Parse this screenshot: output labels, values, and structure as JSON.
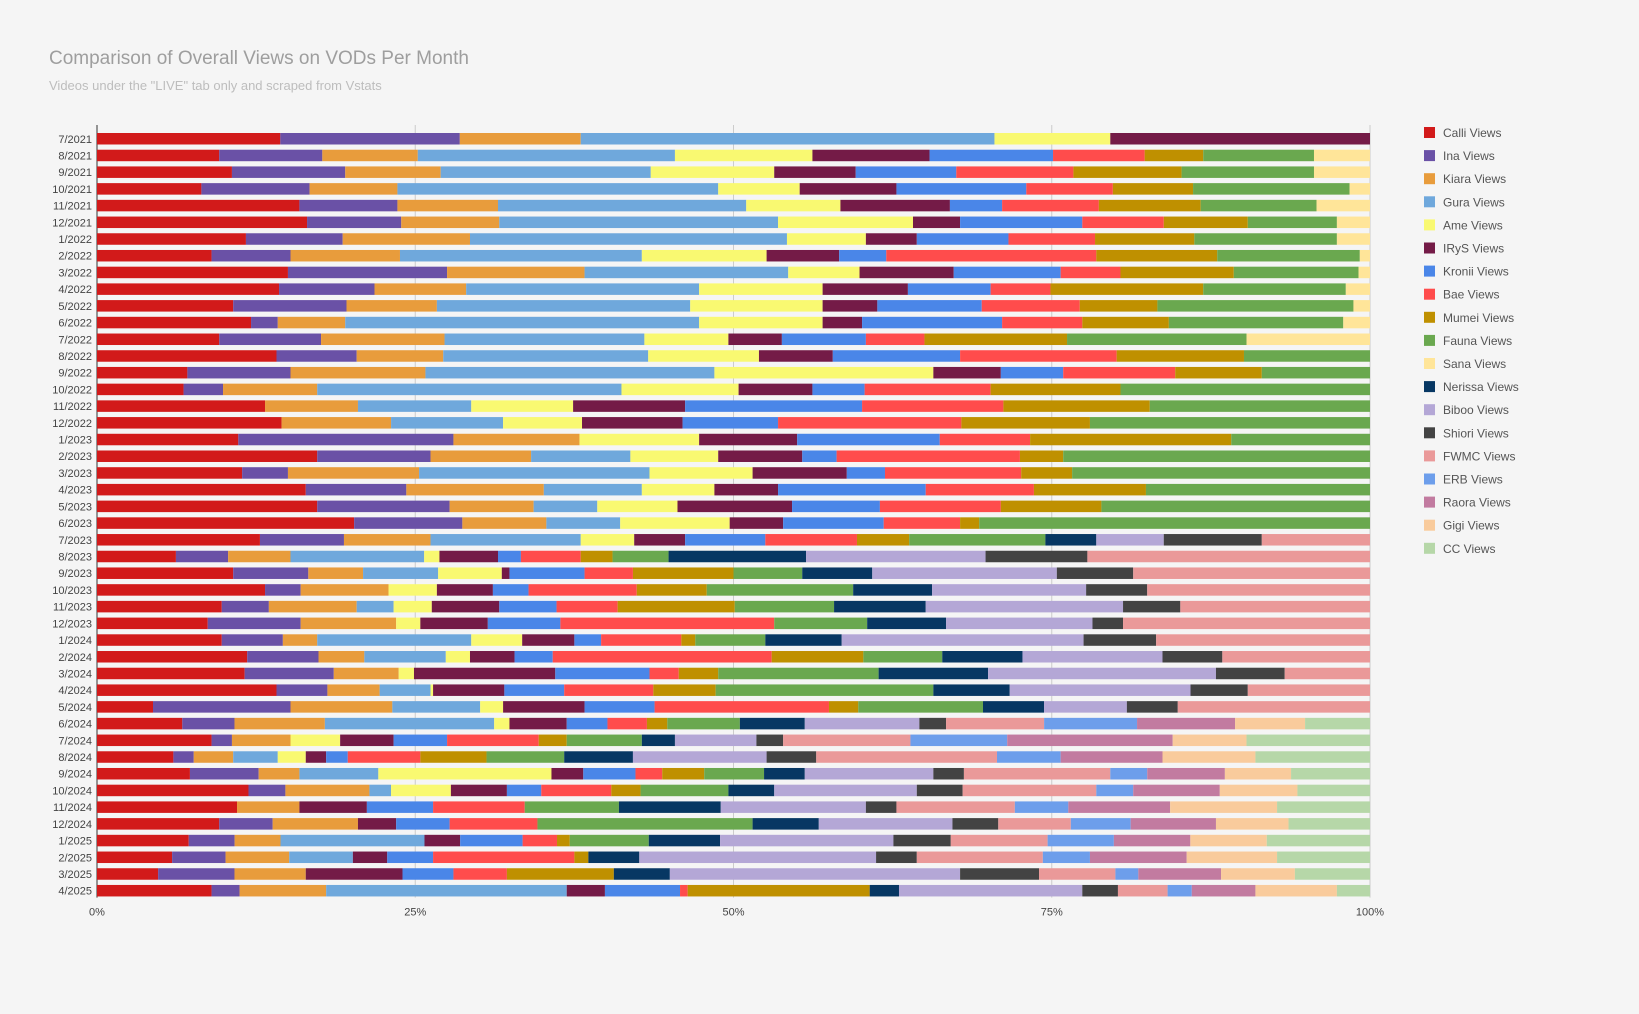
{
  "chart_data": {
    "type": "bar",
    "orientation": "horizontal",
    "stacking": "percent",
    "title": "Comparison of Overall Views on VODs Per Month",
    "subtitle": "Videos under the \"LIVE\" tab only and scraped from Vstats",
    "xlim": [
      0,
      100
    ],
    "x_ticks": [
      "0%",
      "25%",
      "50%",
      "75%",
      "100%"
    ],
    "grid": true,
    "legend_position": "right",
    "categories": [
      "7/2021",
      "8/2021",
      "9/2021",
      "10/2021",
      "11/2021",
      "12/2021",
      "1/2022",
      "2/2022",
      "3/2022",
      "4/2022",
      "5/2022",
      "6/2022",
      "7/2022",
      "8/2022",
      "9/2022",
      "10/2022",
      "11/2022",
      "12/2022",
      "1/2023",
      "2/2023",
      "3/2023",
      "4/2023",
      "5/2023",
      "6/2023",
      "7/2023",
      "8/2023",
      "9/2023",
      "10/2023",
      "11/2023",
      "12/2023",
      "1/2024",
      "2/2024",
      "3/2024",
      "4/2024",
      "5/2024",
      "6/2024",
      "7/2024",
      "8/2024",
      "9/2024",
      "10/2024",
      "11/2024",
      "12/2024",
      "1/2025",
      "2/2025",
      "3/2025",
      "4/2025"
    ],
    "series": [
      {
        "name": "Calli Views",
        "color": "#d21a1a",
        "values": [
          14.4,
          9.6,
          10.6,
          8.2,
          15.9,
          16.5,
          11.7,
          9.0,
          15.0,
          14.3,
          10.7,
          12.1,
          9.6,
          14.1,
          7.1,
          6.8,
          13.2,
          14.5,
          11.1,
          17.3,
          11.4,
          16.4,
          17.3,
          20.2,
          12.8,
          6.2,
          10.7,
          13.2,
          9.8,
          8.7,
          9.8,
          11.8,
          11.6,
          14.1,
          4.4,
          6.7,
          9.0,
          6.0,
          7.3,
          11.9,
          11.0,
          9.6,
          7.2,
          5.9,
          4.8,
          9.0
        ]
      },
      {
        "name": "Ina Views",
        "color": "#6a51a6",
        "values": [
          14.1,
          8.1,
          8.9,
          8.5,
          7.7,
          7.4,
          7.6,
          6.2,
          12.5,
          7.5,
          8.9,
          2.1,
          8.0,
          6.3,
          8.1,
          3.1,
          0,
          0,
          16.9,
          8.9,
          3.6,
          7.9,
          10.4,
          8.5,
          6.6,
          4.1,
          5.9,
          2.8,
          3.7,
          7.3,
          4.8,
          5.6,
          7.0,
          4.0,
          10.8,
          4.1,
          1.6,
          1.6,
          5.4,
          2.9,
          0,
          4.2,
          3.6,
          4.2,
          6.0,
          2.2
        ]
      },
      {
        "name": "Kiara Views",
        "color": "#e89c3c",
        "values": [
          9.5,
          7.5,
          7.5,
          6.9,
          7.9,
          7.7,
          10.0,
          8.6,
          10.8,
          7.2,
          7.1,
          5.3,
          9.7,
          6.8,
          10.6,
          7.4,
          7.3,
          8.6,
          9.9,
          7.9,
          10.3,
          10.8,
          6.6,
          6.6,
          6.8,
          4.9,
          4.3,
          6.9,
          6.9,
          7.5,
          2.7,
          3.6,
          5.1,
          4.1,
          8.0,
          7.1,
          4.6,
          3.1,
          3.2,
          6.6,
          4.9,
          6.7,
          3.6,
          5.0,
          5.6,
          6.8
        ]
      },
      {
        "name": "Gura Views",
        "color": "#6fa8dc",
        "values": [
          32.5,
          20.2,
          16.5,
          25.2,
          19.5,
          21.9,
          24.9,
          19.0,
          16.0,
          18.3,
          19.9,
          27.8,
          15.7,
          16.1,
          22.7,
          23.9,
          8.9,
          8.8,
          0,
          7.8,
          18.1,
          7.7,
          5.0,
          5.8,
          11.8,
          10.5,
          5.9,
          0,
          2.9,
          0,
          12.1,
          6.4,
          0,
          4.0,
          6.9,
          13.3,
          0,
          3.5,
          6.2,
          1.7,
          0,
          0,
          11.3,
          5.0,
          0,
          18.9
        ]
      },
      {
        "name": "Ame Views",
        "color": "#f9f971",
        "values": [
          9.1,
          10.8,
          9.7,
          6.4,
          7.4,
          10.6,
          6.2,
          9.8,
          5.6,
          9.7,
          10.4,
          9.7,
          6.6,
          8.7,
          17.2,
          9.2,
          8.0,
          6.2,
          9.4,
          6.9,
          8.1,
          5.7,
          6.3,
          8.6,
          4.2,
          1.2,
          5.0,
          3.8,
          3.0,
          1.9,
          4.0,
          1.9,
          1.2,
          0.2,
          1.8,
          1.2,
          3.9,
          2.2,
          13.6,
          4.7,
          0,
          0,
          0,
          0,
          0,
          0
        ]
      },
      {
        "name": "IRyS Views",
        "color": "#741b47",
        "values": [
          20.4,
          9.2,
          6.4,
          7.6,
          8.6,
          3.7,
          4.0,
          5.7,
          7.4,
          6.7,
          4.3,
          3.1,
          4.2,
          5.8,
          5.3,
          5.8,
          8.8,
          7.9,
          7.7,
          6.6,
          7.4,
          5.0,
          9.0,
          4.2,
          4.0,
          4.6,
          0.6,
          4.4,
          5.3,
          5.3,
          4.1,
          3.5,
          11.1,
          5.6,
          6.4,
          4.5,
          4.2,
          1.6,
          2.5,
          4.4,
          5.3,
          3.0,
          2.8,
          2.7,
          7.6,
          3.0
        ]
      },
      {
        "name": "Kronii Views",
        "color": "#4a86e8",
        "values": [
          0,
          9.7,
          7.9,
          10.2,
          4.1,
          9.6,
          7.2,
          3.7,
          8.4,
          6.5,
          8.2,
          11.0,
          6.6,
          10.0,
          4.9,
          4.1,
          13.9,
          7.5,
          11.2,
          2.7,
          3.0,
          11.6,
          6.9,
          7.9,
          6.3,
          1.8,
          5.9,
          2.8,
          4.5,
          5.7,
          2.1,
          3.0,
          7.4,
          4.7,
          5.5,
          3.2,
          4.2,
          1.7,
          4.1,
          2.7,
          5.2,
          4.2,
          4.9,
          3.6,
          4.0,
          5.9
        ]
      },
      {
        "name": "Bae Views",
        "color": "#ff4c4c",
        "values": [
          0,
          7.2,
          9.2,
          6.8,
          7.6,
          6.4,
          6.8,
          16.5,
          4.7,
          4.7,
          7.7,
          6.3,
          4.6,
          12.3,
          8.8,
          9.9,
          11.1,
          14.4,
          7.1,
          14.4,
          10.7,
          8.5,
          9.5,
          6.0,
          7.2,
          4.7,
          3.8,
          8.5,
          4.8,
          16.8,
          6.3,
          17.2,
          2.3,
          7.0,
          13.7,
          3.1,
          7.2,
          5.7,
          2.1,
          5.5,
          7.2,
          6.9,
          2.7,
          11.1,
          4.2,
          0.6
        ]
      },
      {
        "name": "Mumei Views",
        "color": "#bf9000",
        "values": [
          0,
          4.6,
          8.5,
          6.3,
          8.0,
          6.6,
          7.8,
          9.5,
          8.9,
          12.0,
          6.1,
          6.8,
          11.2,
          10.0,
          6.8,
          10.2,
          11.5,
          10.1,
          15.8,
          3.4,
          4.0,
          8.8,
          7.9,
          1.5,
          4.1,
          2.5,
          7.9,
          5.5,
          9.2,
          0,
          1.1,
          7.2,
          3.1,
          4.9,
          2.3,
          1.6,
          2.2,
          5.2,
          3.3,
          2.3,
          0,
          0,
          1.0,
          1.1,
          8.4,
          14.3
        ]
      },
      {
        "name": "Fauna Views",
        "color": "#6aa84f",
        "values": [
          0,
          8.7,
          10.4,
          12.3,
          9.1,
          7.0,
          11.2,
          11.2,
          9.8,
          11.2,
          15.4,
          13.7,
          14.1,
          9.9,
          8.5,
          19.6,
          17.3,
          22.0,
          10.9,
          24.1,
          23.4,
          17.6,
          21.1,
          30.7,
          10.7,
          4.4,
          5.4,
          11.5,
          7.8,
          7.3,
          5.5,
          6.2,
          12.6,
          17.1,
          9.8,
          5.7,
          5.9,
          6.1,
          4.7,
          6.9,
          7.4,
          16.9,
          6.2,
          0,
          0,
          0
        ]
      },
      {
        "name": "Sana Views",
        "color": "#ffe599",
        "values": [
          0,
          4.4,
          4.4,
          1.6,
          4.2,
          2.6,
          2.6,
          0.8,
          0.9,
          1.9,
          1.3,
          2.1,
          9.7,
          0,
          0,
          0,
          0,
          0,
          0,
          0,
          0,
          0,
          0,
          0,
          0,
          0,
          0,
          0,
          0,
          0,
          0,
          0,
          0,
          0,
          0,
          0,
          0,
          0,
          0,
          0,
          0,
          0,
          0,
          0,
          0,
          0
        ]
      },
      {
        "name": "Nerissa Views",
        "color": "#073763",
        "values": [
          0,
          0,
          0,
          0,
          0,
          0,
          0,
          0,
          0,
          0,
          0,
          0,
          0,
          0,
          0,
          0,
          0,
          0,
          0,
          0,
          0,
          0,
          0,
          0,
          4.0,
          10.8,
          5.5,
          6.2,
          7.2,
          6.2,
          6.0,
          6.3,
          8.6,
          6.0,
          4.8,
          5.1,
          2.6,
          5.4,
          3.2,
          3.6,
          8.0,
          5.2,
          5.6,
          4.0,
          4.4,
          2.3
        ]
      },
      {
        "name": "Biboo Views",
        "color": "#b4a7d6",
        "values": [
          0,
          0,
          0,
          0,
          0,
          0,
          0,
          0,
          0,
          0,
          0,
          0,
          0,
          0,
          0,
          0,
          0,
          0,
          0,
          0,
          0,
          0,
          0,
          0,
          5.3,
          14.1,
          14.5,
          12.1,
          15.5,
          11.5,
          19.0,
          11.0,
          17.9,
          14.2,
          6.5,
          9.0,
          6.4,
          10.5,
          10.1,
          11.2,
          11.4,
          10.5,
          13.6,
          18.6,
          22.8,
          14.4
        ]
      },
      {
        "name": "Shiori Views",
        "color": "#434343",
        "values": [
          0,
          0,
          0,
          0,
          0,
          0,
          0,
          0,
          0,
          0,
          0,
          0,
          0,
          0,
          0,
          0,
          0,
          0,
          0,
          0,
          0,
          0,
          0,
          0,
          7.7,
          8.0,
          6.0,
          4.8,
          4.5,
          2.4,
          5.7,
          4.7,
          5.4,
          4.5,
          4.0,
          2.1,
          2.1,
          3.9,
          2.4,
          3.6,
          2.4,
          3.6,
          4.5,
          3.2,
          6.2,
          2.8
        ]
      },
      {
        "name": "FWMC Views",
        "color": "#ea9999",
        "values": [
          0,
          0,
          0,
          0,
          0,
          0,
          0,
          0,
          0,
          0,
          0,
          0,
          0,
          0,
          0,
          0,
          0,
          0,
          0,
          0,
          0,
          0,
          0,
          0,
          8.5,
          22.2,
          18.6,
          17.5,
          14.9,
          19.4,
          16.8,
          11.6,
          6.7,
          9.6,
          15.1,
          7.7,
          10.0,
          14.2,
          11.5,
          10.5,
          9.3,
          5.7,
          7.6,
          9.9,
          6.0,
          3.9
        ]
      },
      {
        "name": "ERB Views",
        "color": "#6d9eeb",
        "values": [
          0,
          0,
          0,
          0,
          0,
          0,
          0,
          0,
          0,
          0,
          0,
          0,
          0,
          0,
          0,
          0,
          0,
          0,
          0,
          0,
          0,
          0,
          0,
          0,
          0,
          0,
          0,
          0,
          0,
          0,
          0,
          0,
          0,
          0,
          0,
          7.3,
          7.6,
          5.0,
          2.9,
          2.9,
          4.2,
          4.7,
          5.2,
          3.7,
          1.8,
          1.9
        ]
      },
      {
        "name": "Raora Views",
        "color": "#c27ba0",
        "values": [
          0,
          0,
          0,
          0,
          0,
          0,
          0,
          0,
          0,
          0,
          0,
          0,
          0,
          0,
          0,
          0,
          0,
          0,
          0,
          0,
          0,
          0,
          0,
          0,
          0,
          0,
          0,
          0,
          0,
          0,
          0,
          0,
          0,
          0,
          0,
          7.7,
          13.0,
          8.0,
          6.1,
          6.8,
          8.0,
          6.7,
          6.0,
          7.6,
          6.5,
          5.0
        ]
      },
      {
        "name": "Gigi Views",
        "color": "#f9cb9c",
        "values": [
          0,
          0,
          0,
          0,
          0,
          0,
          0,
          0,
          0,
          0,
          0,
          0,
          0,
          0,
          0,
          0,
          0,
          0,
          0,
          0,
          0,
          0,
          0,
          0,
          0,
          0,
          0,
          0,
          0,
          0,
          0,
          0,
          0,
          0,
          0,
          5.5,
          5.8,
          7.3,
          5.2,
          6.1,
          8.4,
          5.7,
          6.0,
          7.1,
          5.8,
          6.4
        ]
      },
      {
        "name": "CC Views",
        "color": "#b6d7a8",
        "values": [
          0,
          0,
          0,
          0,
          0,
          0,
          0,
          0,
          0,
          0,
          0,
          0,
          0,
          0,
          0,
          0,
          0,
          0,
          0,
          0,
          0,
          0,
          0,
          0,
          0,
          0,
          0,
          0,
          0,
          0,
          0,
          0,
          0,
          0,
          0,
          5.1,
          9.7,
          9.0,
          6.2,
          5.7,
          7.3,
          6.4,
          8.1,
          7.3,
          5.9,
          2.6
        ]
      }
    ]
  }
}
